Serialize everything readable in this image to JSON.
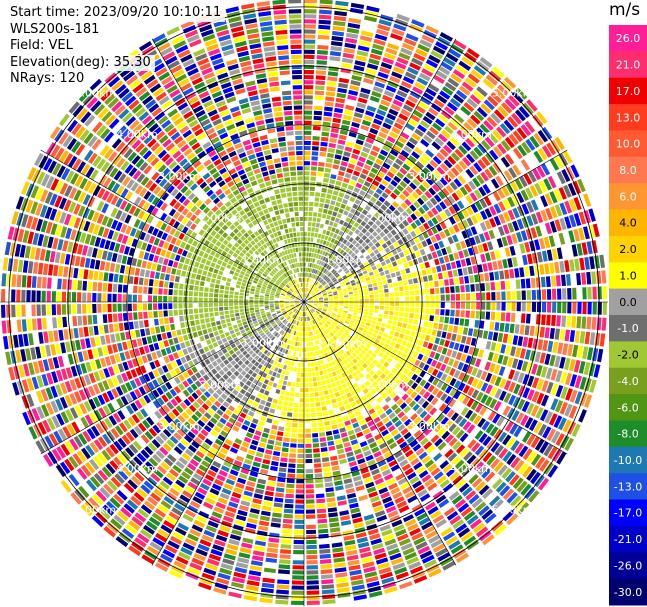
{
  "header": {
    "start_time": "Start time: 2023/09/20 10:10:11",
    "instrument": "WLS200s-181",
    "field": "Field: VEL",
    "elevation": "Elevation(deg): 35.30",
    "nrays": "NRays: 120"
  },
  "chart_data": {
    "type": "heatmap",
    "projection": "polar-ppi",
    "field": "VEL",
    "n_rays": 120,
    "range_rings_km": [
      1,
      2,
      3,
      4,
      5
    ],
    "ring_labels": [
      "1.00km",
      "2.00km",
      "3.00km",
      "4.00km",
      "5.00km"
    ],
    "colorbar": {
      "unit": "m/s",
      "ticks": [
        "26.0",
        "21.0",
        "17.0",
        "13.0",
        "10.0",
        "8.0",
        "6.0",
        "4.0",
        "2.0",
        "1.0",
        "0.0",
        "-1.0",
        "-2.0",
        "-4.0",
        "-6.0",
        "-8.0",
        "-10.0",
        "-13.0",
        "-17.0",
        "-21.0",
        "-26.0",
        "-30.0"
      ],
      "colors": [
        "#ff1e96",
        "#ff2d6e",
        "#f00000",
        "#ff3c1e",
        "#ff5a32",
        "#ff7850",
        "#ff9632",
        "#ffb400",
        "#ffd200",
        "#ffff00",
        "#a0a0a0",
        "#6e6e6e",
        "#a0c832",
        "#78a01e",
        "#509614",
        "#1e8c28",
        "#1e78b4",
        "#1e50e6",
        "#0000ff",
        "#0000c8",
        "#000096",
        "#00006e"
      ]
    },
    "description_of_field": "Near ranges (< ~2.3 km) show coherent velocity: approaching (green, about -2 m/s) to the west/north, receding (yellow, about +2 m/s) to the east/south, zero band (gray) between; outer ranges are noise with random colors."
  }
}
